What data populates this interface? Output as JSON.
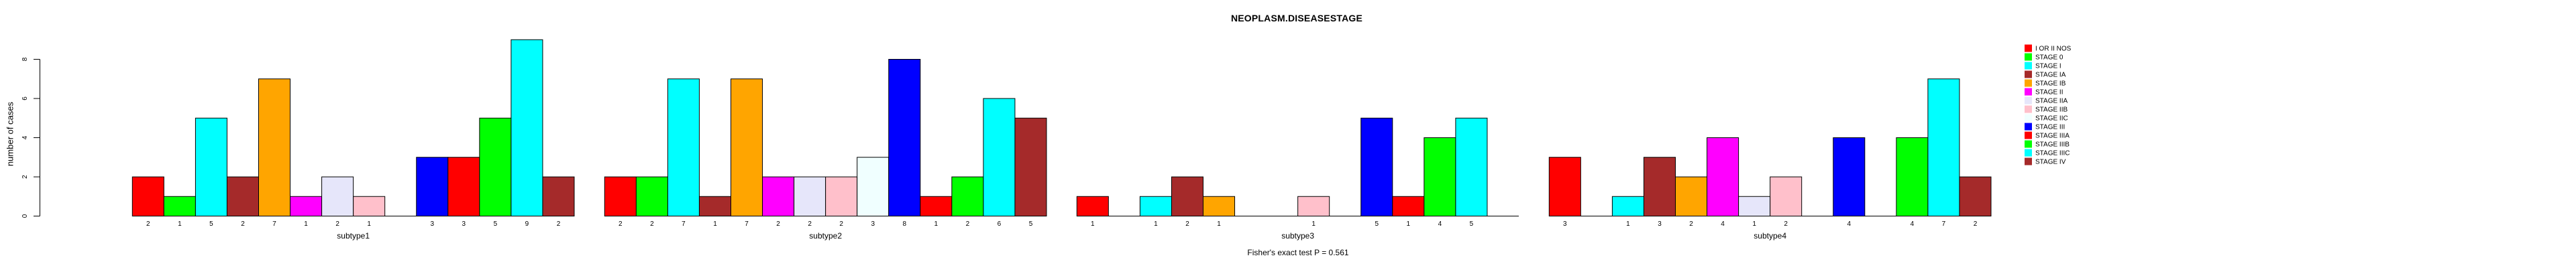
{
  "title": "NEOPLASM.DISEASESTAGE",
  "footer": {
    "text": "Fisher's exact test P = 0.561"
  },
  "y_axis": {
    "label": "number of cases",
    "ticks": [
      0,
      2,
      4,
      6,
      8
    ]
  },
  "chart_data": {
    "type": "bar",
    "title": "NEOPLASM.DISEASESTAGE",
    "ylabel": "number of cases",
    "ylim": [
      0,
      9
    ],
    "yticks": [
      0,
      2,
      4,
      6,
      8
    ],
    "grid": false,
    "legend_position": "right",
    "bar_label_rule": "each bar's count value is printed below it; zero-count stages leave an empty slot with no label",
    "categories": [
      "I OR II NOS",
      "STAGE 0",
      "STAGE I",
      "STAGE IA",
      "STAGE IB",
      "STAGE II",
      "STAGE IIA",
      "STAGE IIB",
      "STAGE IIC",
      "STAGE III",
      "STAGE IIIA",
      "STAGE IIIB",
      "STAGE IIIC",
      "STAGE IV"
    ],
    "palette": [
      "#FF0000",
      "#00FF00",
      "#00FFFF",
      "#A52A2A",
      "#FFA500",
      "#FF00FF",
      "#E6E6FA",
      "#FFC0CB",
      "#F0FFFF",
      "#0000FF",
      "#FF0000",
      "#00FF00",
      "#00FFFF",
      "#A52A2A"
    ],
    "series": [
      {
        "name": "subtype1",
        "values": [
          2,
          1,
          5,
          2,
          7,
          1,
          2,
          1,
          0,
          3,
          3,
          5,
          9,
          2
        ]
      },
      {
        "name": "subtype2",
        "values": [
          2,
          2,
          7,
          1,
          7,
          2,
          2,
          2,
          3,
          8,
          1,
          2,
          6,
          5
        ]
      },
      {
        "name": "subtype3",
        "values": [
          1,
          0,
          1,
          2,
          1,
          0,
          0,
          1,
          0,
          5,
          1,
          4,
          5,
          0
        ]
      },
      {
        "name": "subtype4",
        "values": [
          3,
          0,
          1,
          3,
          2,
          4,
          1,
          2,
          0,
          4,
          0,
          4,
          7,
          2
        ]
      }
    ]
  }
}
